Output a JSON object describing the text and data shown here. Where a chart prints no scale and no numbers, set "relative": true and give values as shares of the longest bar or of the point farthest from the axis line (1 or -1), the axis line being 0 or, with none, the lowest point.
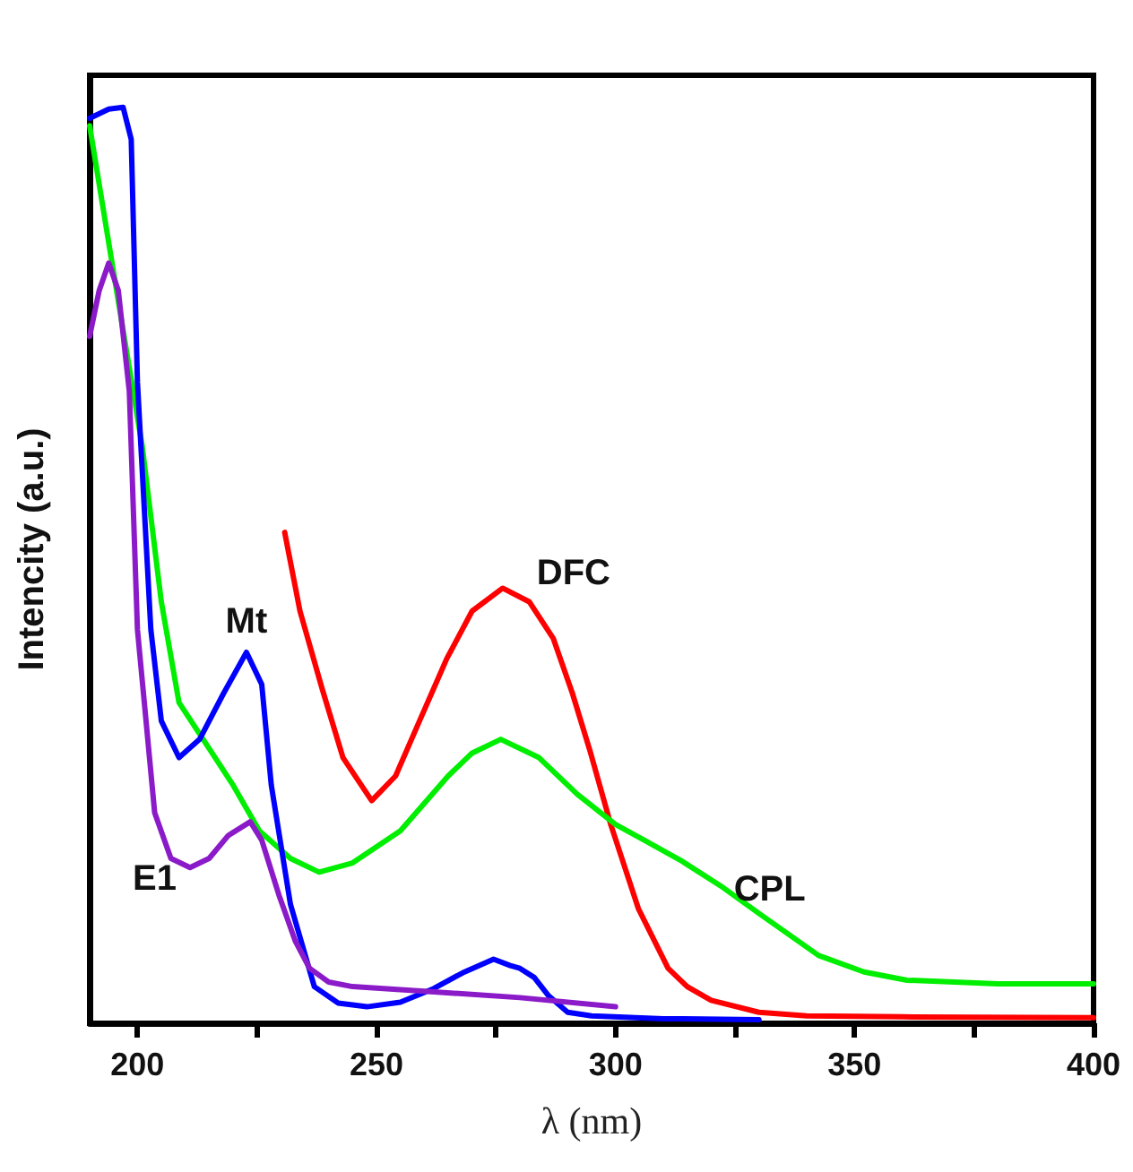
{
  "chart_data": {
    "type": "line",
    "xlabel": "λ (nm)",
    "ylabel": "Intencity (a.u.)",
    "relative": true,
    "marker": "none",
    "xlim": [
      190,
      400
    ],
    "xticks": [
      200,
      {
        "value": 225,
        "label": null
      },
      250,
      {
        "value": 275,
        "label": null
      },
      300,
      {
        "value": 325,
        "label": null
      },
      350,
      {
        "value": 375,
        "label": null
      },
      400
    ],
    "series": [
      {
        "name": "DFC",
        "color": "#ff0000",
        "x": [
          230.8,
          234,
          238.7,
          243,
          249,
          254,
          259,
          264.7,
          270,
          276.4,
          282,
          287,
          291,
          294.8,
          299,
          304.8,
          311,
          315,
          320,
          330,
          340,
          360,
          400
        ],
        "values": [
          0.536,
          0.45,
          0.364,
          0.29,
          0.243,
          0.27,
          0.33,
          0.398,
          0.45,
          0.475,
          0.46,
          0.42,
          0.36,
          0.295,
          0.217,
          0.125,
          0.06,
          0.04,
          0.025,
          0.012,
          0.008,
          0.007,
          0.006
        ]
      },
      {
        "name": "CPL",
        "color": "#00ee00",
        "x": [
          190,
          195,
          201,
          205,
          208.7,
          215,
          220,
          225.5,
          232,
          238,
          245,
          255,
          265,
          270,
          276,
          284,
          292,
          300,
          306,
          313.6,
          322,
          330,
          342.5,
          352,
          361,
          380,
          400
        ],
        "values": [
          0.98,
          0.82,
          0.63,
          0.46,
          0.35,
          0.3,
          0.26,
          0.21,
          0.18,
          0.165,
          0.175,
          0.21,
          0.27,
          0.295,
          0.31,
          0.29,
          0.25,
          0.217,
          0.2,
          0.178,
          0.15,
          0.12,
          0.074,
          0.056,
          0.047,
          0.043,
          0.043
        ]
      },
      {
        "name": "Mt",
        "color": "#0000ff",
        "x": [
          190,
          194,
          197,
          198.7,
          200,
          202.8,
          205,
          208.7,
          213,
          218,
          222.8,
          226,
          228,
          232,
          237,
          242,
          248,
          255,
          262,
          268,
          274.5,
          278,
          280,
          283,
          286,
          290,
          295,
          310,
          330
        ],
        "values": [
          0.988,
          0.998,
          1.0,
          0.965,
          0.7,
          0.43,
          0.33,
          0.29,
          0.31,
          0.36,
          0.405,
          0.37,
          0.26,
          0.13,
          0.04,
          0.022,
          0.018,
          0.023,
          0.038,
          0.055,
          0.07,
          0.063,
          0.06,
          0.05,
          0.03,
          0.012,
          0.008,
          0.005,
          0.004
        ]
      },
      {
        "name": "E1",
        "color": "#8b1ac8",
        "x": [
          190,
          192,
          194,
          196,
          198.3,
          200,
          203.6,
          207,
          211,
          215,
          219,
          223.6,
          226,
          229.6,
          233,
          236,
          240,
          245,
          260,
          280,
          300
        ],
        "values": [
          0.75,
          0.8,
          0.83,
          0.8,
          0.69,
          0.43,
          0.23,
          0.18,
          0.17,
          0.18,
          0.205,
          0.22,
          0.2,
          0.14,
          0.09,
          0.06,
          0.045,
          0.04,
          0.035,
          0.028,
          0.018
        ]
      }
    ]
  }
}
